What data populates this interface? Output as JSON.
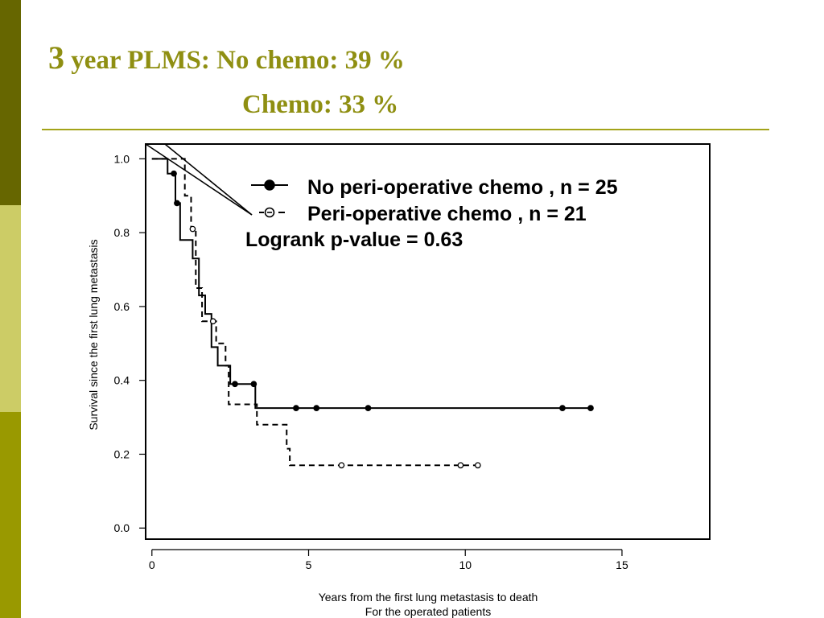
{
  "slide": {
    "title_number": "3",
    "title_line1": "year PLMS: No chemo: 39 %",
    "title_line2": "Chemo: 33 %",
    "colors": {
      "sidebar_top": "#666600",
      "sidebar_mid": "#cccc66",
      "sidebar_bottom": "#999900",
      "title": "#8f8f12",
      "rule": "#a3a319"
    }
  },
  "chart_data": {
    "type": "line",
    "subtype": "kaplan-meier",
    "title": "",
    "xlabel": "Years from the first lung metastasis to death",
    "xlabel_line2": "For the operated patients",
    "ylabel": "Survival since the first lung metastasis",
    "xlim": [
      -0.2,
      17.8
    ],
    "ylim": [
      -0.03,
      1.04
    ],
    "xticks": [
      0,
      5,
      10,
      15
    ],
    "yticks": [
      0.0,
      0.2,
      0.4,
      0.6,
      0.8,
      1.0
    ],
    "xtick_labels": [
      "0",
      "5",
      "10",
      "15"
    ],
    "ytick_labels": [
      "0.0",
      "0.2",
      "0.4",
      "0.6",
      "0.8",
      "1.0"
    ],
    "legend_position": "top-right",
    "legend_texts": [
      "No peri-operative chemo , n = 25",
      "Peri-operative chemo , n = 21"
    ],
    "annotation": "Logrank p-value = 0.63",
    "series": [
      {
        "label": "No peri-operative chemo , n = 25",
        "style": "solid",
        "marker": "filled-circle",
        "color": "#000000",
        "steps": [
          [
            0,
            1.0
          ],
          [
            0.5,
            0.96
          ],
          [
            0.75,
            0.88
          ],
          [
            0.9,
            0.78
          ],
          [
            1.3,
            0.73
          ],
          [
            1.5,
            0.63
          ],
          [
            1.7,
            0.58
          ],
          [
            1.9,
            0.49
          ],
          [
            2.1,
            0.44
          ],
          [
            2.5,
            0.39
          ],
          [
            3.3,
            0.325
          ],
          [
            14.0,
            0.325
          ]
        ],
        "censor": [
          [
            0.7,
            0.96
          ],
          [
            0.8,
            0.88
          ],
          [
            2.65,
            0.39
          ],
          [
            3.25,
            0.39
          ],
          [
            4.6,
            0.325
          ],
          [
            5.25,
            0.325
          ],
          [
            6.9,
            0.325
          ],
          [
            13.1,
            0.325
          ],
          [
            14.0,
            0.325
          ]
        ]
      },
      {
        "label": "Peri-operative chemo , n = 21",
        "style": "dashed",
        "marker": "open-circle",
        "color": "#000000",
        "steps": [
          [
            0,
            1.0
          ],
          [
            1.05,
            0.9
          ],
          [
            1.25,
            0.81
          ],
          [
            1.4,
            0.65
          ],
          [
            1.6,
            0.56
          ],
          [
            2.05,
            0.5
          ],
          [
            2.35,
            0.44
          ],
          [
            2.45,
            0.335
          ],
          [
            3.35,
            0.28
          ],
          [
            4.3,
            0.215
          ],
          [
            4.4,
            0.17
          ],
          [
            10.4,
            0.17
          ]
        ],
        "censor": [
          [
            1.3,
            0.81
          ],
          [
            1.95,
            0.56
          ],
          [
            6.05,
            0.17
          ],
          [
            9.85,
            0.17
          ],
          [
            10.4,
            0.17
          ]
        ]
      }
    ]
  }
}
